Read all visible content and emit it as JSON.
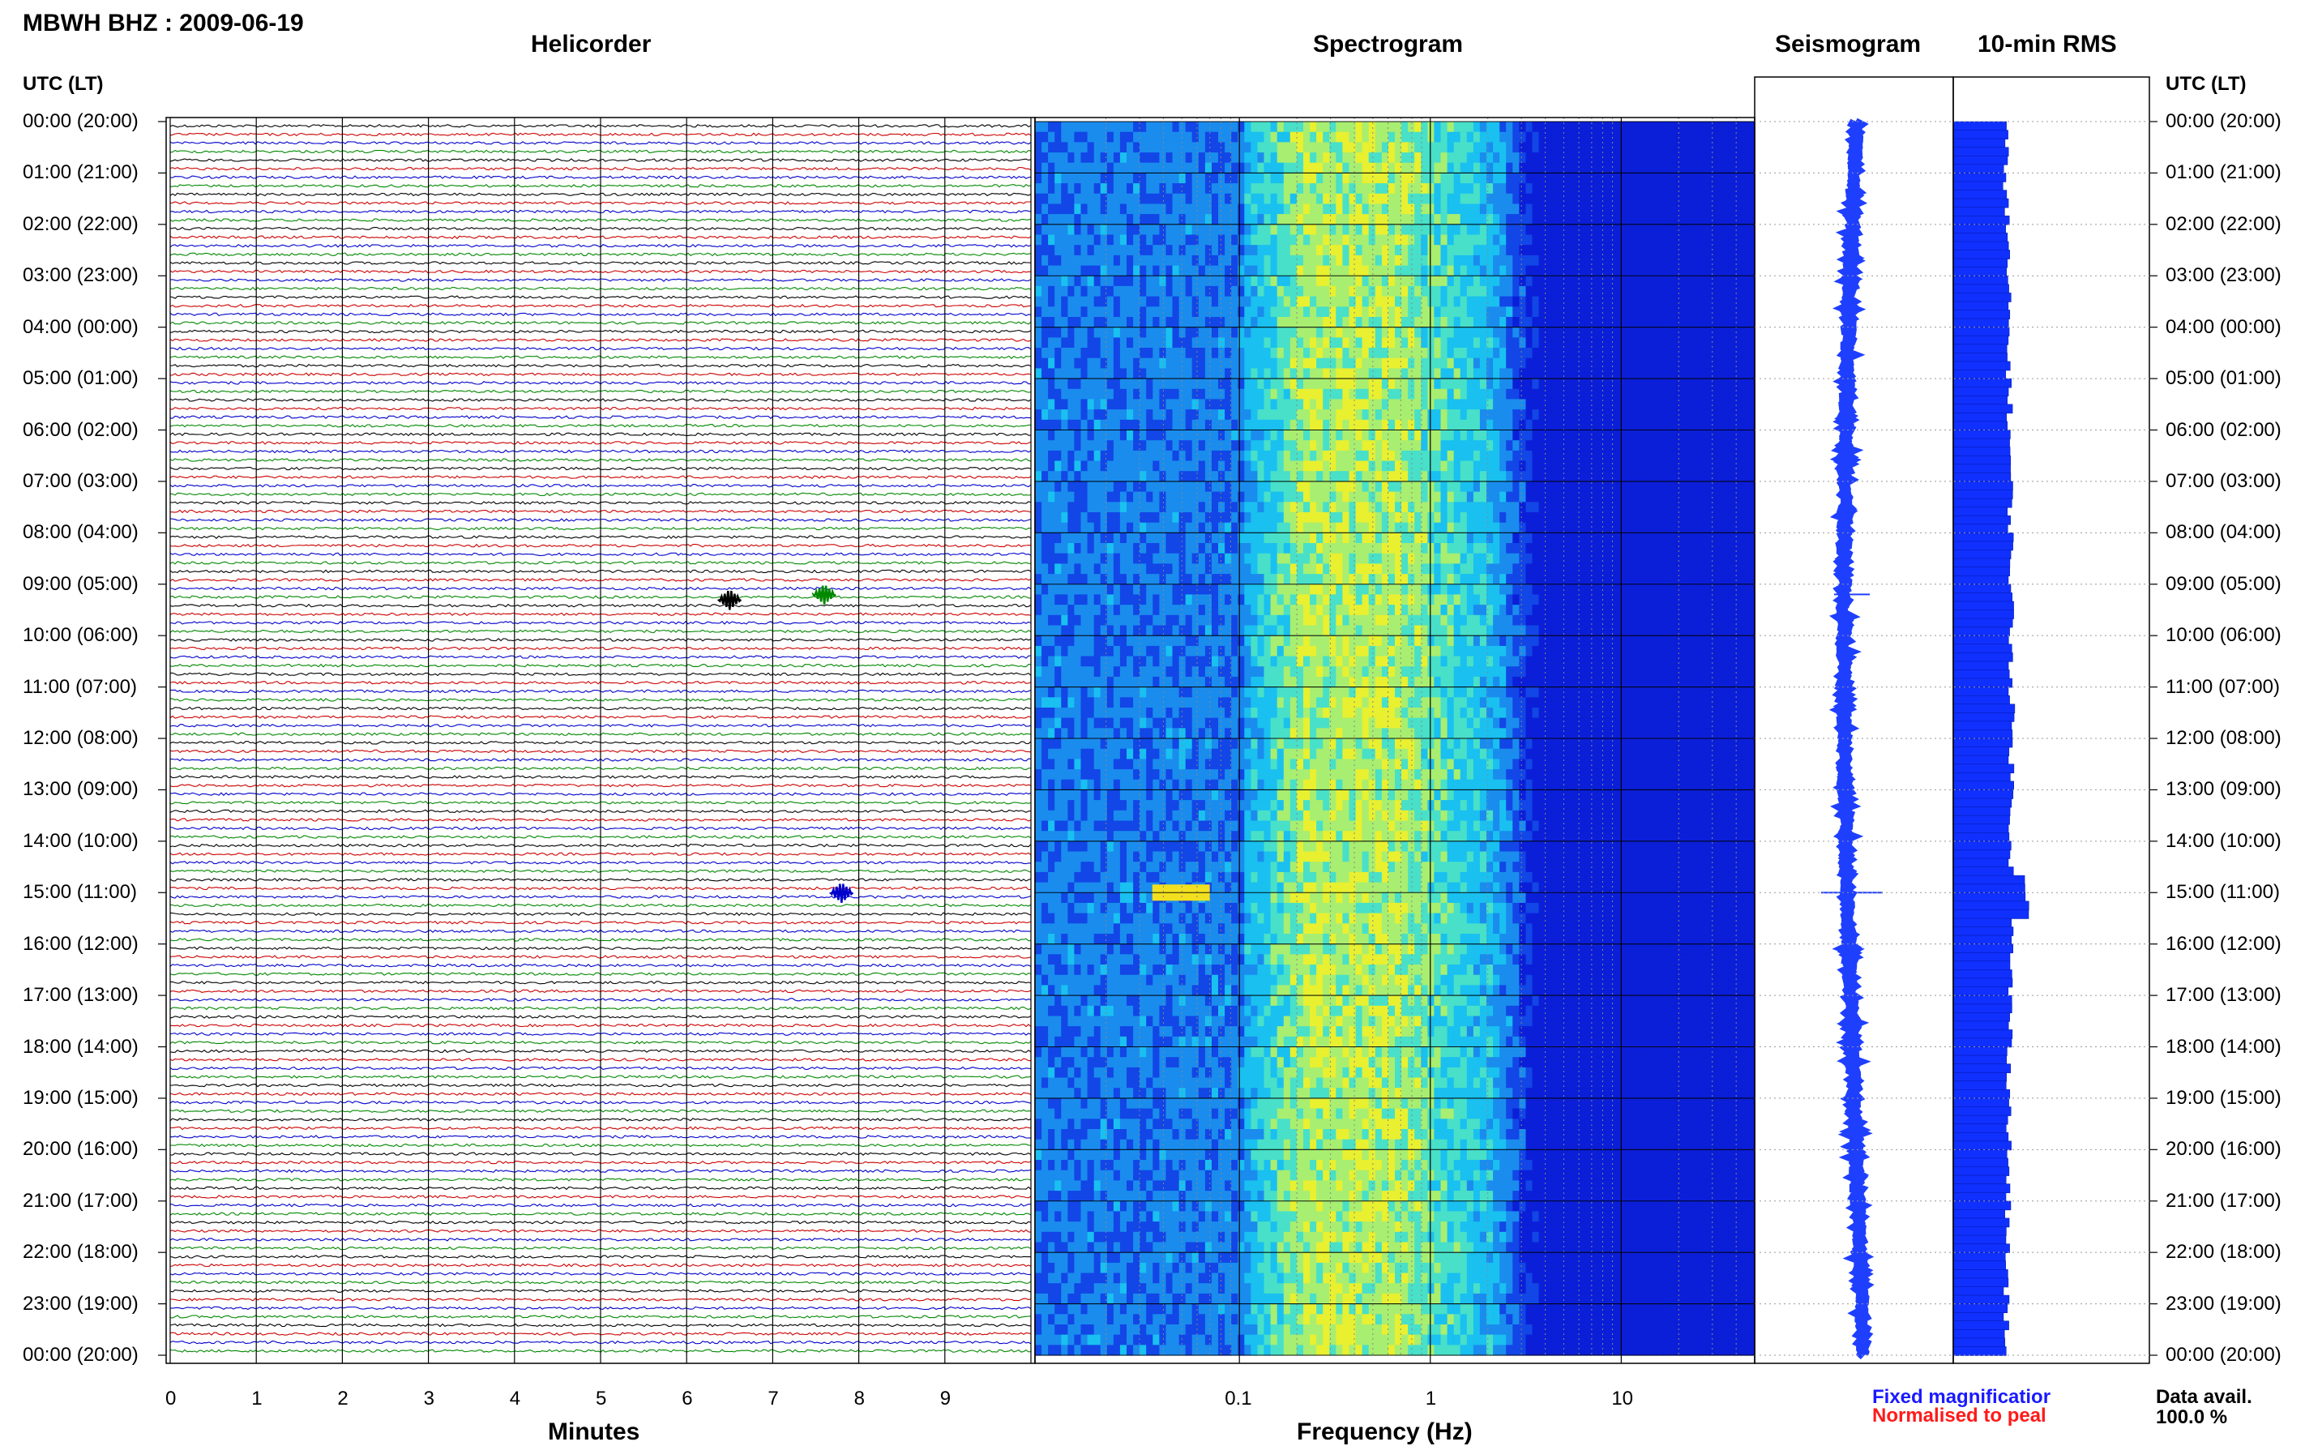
{
  "header": {
    "station_title": "MBWH BHZ : 2009-06-19",
    "panel_helicorder": "Helicorder",
    "panel_spectrogram": "Spectrogram",
    "panel_seismogram": "Seismogram",
    "panel_rms": "10-min RMS"
  },
  "axes": {
    "left_axis_title": "UTC (LT)",
    "right_axis_title": "UTC (LT)",
    "time_labels": [
      "00:00 (20:00)",
      "01:00 (21:00)",
      "02:00 (22:00)",
      "03:00 (23:00)",
      "04:00 (00:00)",
      "05:00 (01:00)",
      "06:00 (02:00)",
      "07:00 (03:00)",
      "08:00 (04:00)",
      "09:00 (05:00)",
      "10:00 (06:00)",
      "11:00 (07:00)",
      "12:00 (08:00)",
      "13:00 (09:00)",
      "14:00 (10:00)",
      "15:00 (11:00)",
      "16:00 (12:00)",
      "17:00 (13:00)",
      "18:00 (14:00)",
      "19:00 (15:00)",
      "20:00 (16:00)",
      "21:00 (17:00)",
      "22:00 (18:00)",
      "23:00 (19:00)",
      "00:00 (20:00)"
    ],
    "minutes_ticks": [
      "0",
      "1",
      "2",
      "3",
      "4",
      "5",
      "6",
      "7",
      "8",
      "9"
    ],
    "minutes_title": "Minutes",
    "frequency_ticks": [
      "0.1",
      "1",
      "10"
    ],
    "frequency_title": "Frequency (Hz)"
  },
  "legend": {
    "fixed": "Fixed magnificatior",
    "normalised": "Normalised to peal",
    "fixed_color": "#1a1aff",
    "normalised_color": "#ff1a1a"
  },
  "footer": {
    "data_avail_label": "Data avail.",
    "data_avail_value": "100.0 %"
  },
  "colors": {
    "helicorder_traces": [
      "#000000",
      "#cc0000",
      "#0000cc",
      "#008800"
    ],
    "seismogram": "#1f3fff",
    "rms_bar": "#1030ff",
    "spectrogram_low": "#0b1fd8",
    "spectrogram_mid": "#18b8f0",
    "spectrogram_high": "#e8f030"
  },
  "events": {
    "helicorder": [
      {
        "hour": 9.2,
        "minute": 7.6,
        "color_index": 3
      },
      {
        "hour": 9.3,
        "minute": 6.5,
        "color_index": 0
      },
      {
        "hour": 15.0,
        "minute": 7.8,
        "color_index": 2
      }
    ],
    "spectrogram_hot_spot": {
      "hour": 15.0,
      "freq_min": 0.035,
      "freq_max": 0.07
    }
  }
}
